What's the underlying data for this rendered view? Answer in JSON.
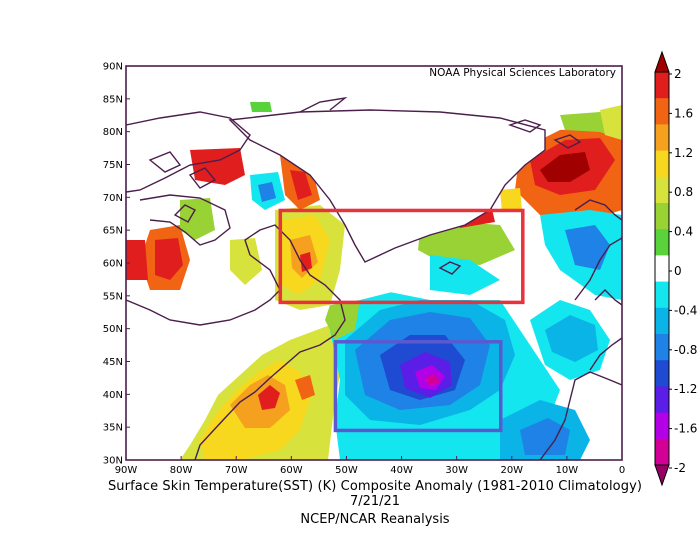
{
  "credit": "NOAA Physical Sciences Laboratory",
  "caption": {
    "main": "Surface Skin Temperature(SST) (K) Composite Anomaly (1981-2010 Climatology)",
    "date": "7/21/21",
    "source": "NCEP/NCAR Reanalysis"
  },
  "map": {
    "lon_range": [
      -90,
      0
    ],
    "lat_range": [
      30,
      90
    ],
    "lat_ticks": [
      "90N",
      "85N",
      "80N",
      "75N",
      "70N",
      "65N",
      "60N",
      "55N",
      "50N",
      "45N",
      "40N",
      "35N",
      "30N"
    ],
    "lon_ticks": [
      "90W",
      "80W",
      "70W",
      "60W",
      "50W",
      "40W",
      "30W",
      "20W",
      "10W",
      "0"
    ],
    "boxes": [
      {
        "name": "red-box",
        "color": "#e8323c",
        "lon": [
          -62,
          -18
        ],
        "lat": [
          54,
          68
        ]
      },
      {
        "name": "blue-box",
        "color": "#5a5ad0",
        "lon": [
          -52,
          -22
        ],
        "lat": [
          34.5,
          48
        ]
      }
    ]
  },
  "colorbar": {
    "labels": [
      "2",
      "1.6",
      "1.2",
      "0.8",
      "0.4",
      "0",
      "-0.4",
      "-0.8",
      "-1.2",
      "-1.6",
      "-2"
    ],
    "colors": [
      "#a00000",
      "#e11e1e",
      "#f06414",
      "#f5a01e",
      "#f8d81e",
      "#d7e33c",
      "#98d235",
      "#5ad23c",
      "#ffffff",
      "#14e6f0",
      "#0ab4e6",
      "#1e82e6",
      "#1e4bd2",
      "#5a1ee6",
      "#b400e6",
      "#d20096",
      "#960064"
    ]
  }
}
